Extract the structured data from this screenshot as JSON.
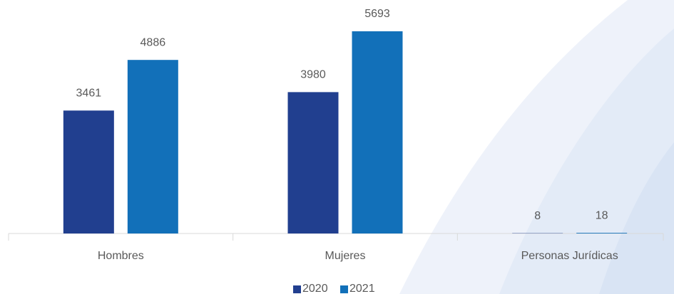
{
  "chart_data": {
    "type": "bar",
    "categories": [
      "Hombres",
      "Mujeres",
      "Personas Jurídicas"
    ],
    "series": [
      {
        "name": "2020",
        "color": "#213f8f",
        "values": [
          3461,
          3980,
          8
        ]
      },
      {
        "name": "2021",
        "color": "#1270b9",
        "values": [
          4886,
          5693,
          18
        ]
      }
    ],
    "ylim": [
      0,
      6000
    ],
    "legend": "bottom"
  }
}
